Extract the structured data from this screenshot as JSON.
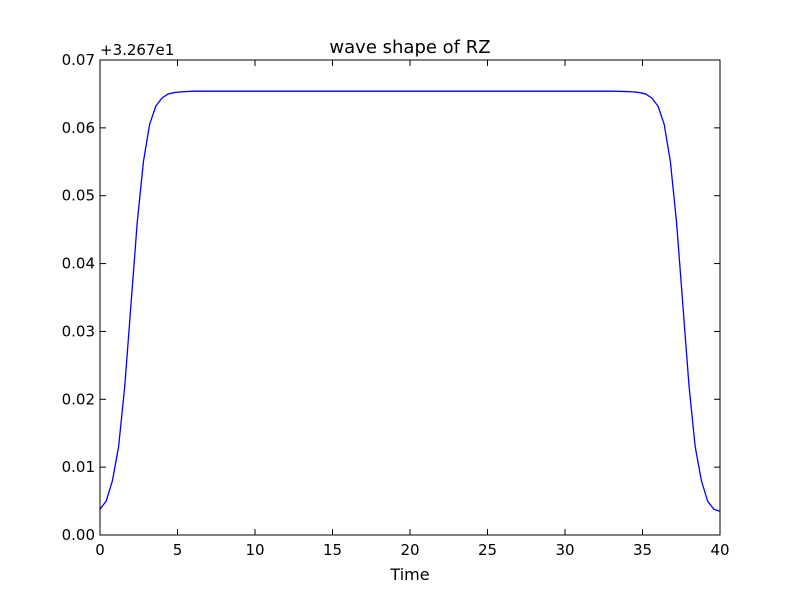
{
  "chart_data": {
    "type": "line",
    "title": "wave shape of RZ",
    "xlabel": "Time",
    "ylabel": "",
    "y_offset_label": "+3.267e1",
    "xlim": [
      0,
      40
    ],
    "ylim": [
      0.0,
      0.07
    ],
    "x_ticks": [
      0,
      5,
      10,
      15,
      20,
      25,
      30,
      35,
      40
    ],
    "y_ticks": [
      0.0,
      0.01,
      0.02,
      0.03,
      0.04,
      0.05,
      0.06,
      0.07
    ],
    "y_tick_labels": [
      "0.00",
      "0.01",
      "0.02",
      "0.03",
      "0.04",
      "0.05",
      "0.06",
      "0.07"
    ],
    "grid": false,
    "series": [
      {
        "color": "#0000ff",
        "x": [
          0,
          0.4,
          0.8,
          1.2,
          1.6,
          2.0,
          2.4,
          2.8,
          3.2,
          3.6,
          4.0,
          4.4,
          4.8,
          5.2,
          5.6,
          6.0,
          6.5,
          7,
          8,
          10,
          15,
          20,
          25,
          30,
          32,
          33,
          34,
          34.4,
          34.8,
          35.2,
          35.6,
          36.0,
          36.4,
          36.8,
          37.2,
          37.6,
          38.0,
          38.4,
          38.8,
          39.2,
          39.6,
          40
        ],
        "y": [
          0.0038,
          0.005,
          0.008,
          0.013,
          0.022,
          0.034,
          0.046,
          0.055,
          0.0605,
          0.0632,
          0.0644,
          0.065,
          0.0652,
          0.0653,
          0.06535,
          0.0654,
          0.0654,
          0.0654,
          0.0654,
          0.0654,
          0.0654,
          0.0654,
          0.0654,
          0.0654,
          0.0654,
          0.0654,
          0.06535,
          0.0653,
          0.0652,
          0.065,
          0.0644,
          0.0632,
          0.0605,
          0.055,
          0.046,
          0.034,
          0.022,
          0.013,
          0.008,
          0.005,
          0.0038,
          0.0035
        ]
      }
    ]
  }
}
